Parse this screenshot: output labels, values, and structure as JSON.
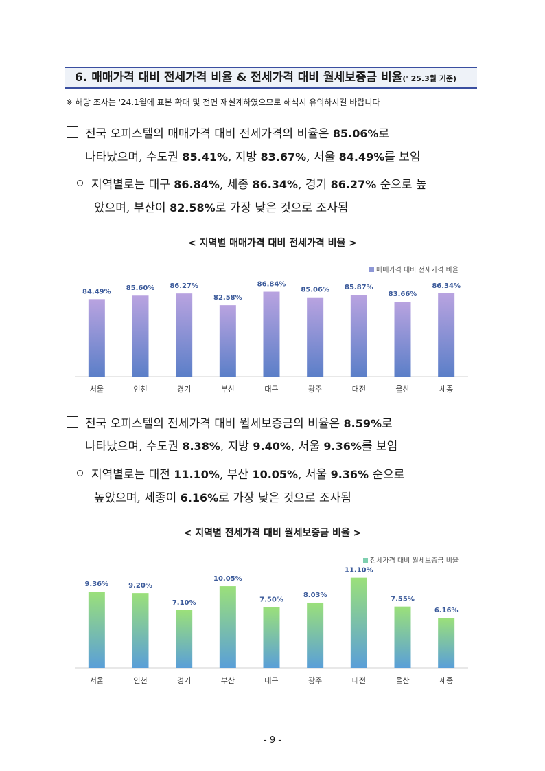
{
  "section": {
    "title": "6. 매매가격 대비 전세가격 비율 & 전세가격 대비 월세보증금 비율",
    "title_suffix": "(' 25.3월 기준)",
    "note": "※ 해당 조사는 '24.1월에 표본 확대 및 전면 재설계하였으므로 해석시 유의하시길 바랍니다"
  },
  "block1": {
    "line1_pre": "전국 오피스텔의 매매가격 대비 전세가격의 비율은 ",
    "line1_val": "85.06%",
    "line1_post": "로",
    "line2_a": "나타났으며, 수도권 ",
    "line2_v1": "85.41%",
    "line2_b": ", 지방 ",
    "line2_v2": "83.67%",
    "line2_c": ", 서울 ",
    "line2_v3": "84.49%",
    "line2_d": "를 보임",
    "sub_line1_a": "지역별로는 대구 ",
    "sub_line1_v1": "86.84%",
    "sub_line1_b": ", 세종 ",
    "sub_line1_v2": "86.34%",
    "sub_line1_c": ", 경기 ",
    "sub_line1_v3": "86.27%",
    "sub_line1_d": " 순으로 높",
    "sub_line2_a": "았으며, 부산이 ",
    "sub_line2_v1": "82.58%",
    "sub_line2_b": "로 가장 낮은 것으로 조사됨"
  },
  "block2": {
    "line1_pre": "전국 오피스텔의 전세가격 대비 월세보증금의 비율은 ",
    "line1_val": "8.59%",
    "line1_post": "로",
    "line2_a": "나타났으며, 수도권 ",
    "line2_v1": "8.38%",
    "line2_b": ", 지방 ",
    "line2_v2": "9.40%",
    "line2_c": ", 서울 ",
    "line2_v3": "9.36%",
    "line2_d": "를 보임",
    "sub_line1_a": "지역별로는 대전 ",
    "sub_line1_v1": "11.10%",
    "sub_line1_b": ", 부산 ",
    "sub_line1_v2": "10.05%",
    "sub_line1_c": ", 서울 ",
    "sub_line1_v3": "9.36%",
    "sub_line1_d": " 순으로",
    "sub_line2_a": "높았으며, 세종이 ",
    "sub_line2_v1": "6.16%",
    "sub_line2_b": "로 가장 낮은 것으로 조사됨"
  },
  "chart1_caption": "< 지역별 매매가격 대비 전세가격 비율 >",
  "chart2_caption": "< 지역별 전세가격 대비 월세보증금 비율 >",
  "page_number": "- 9 -",
  "chart_data": [
    {
      "type": "bar",
      "categories": [
        "서울",
        "인천",
        "경기",
        "부산",
        "대구",
        "광주",
        "대전",
        "울산",
        "세종"
      ],
      "series": [
        {
          "name": "매매가격 대비 전세가격 비율",
          "values": [
            84.49,
            85.6,
            86.27,
            82.58,
            86.84,
            85.06,
            85.87,
            83.66,
            86.34
          ]
        }
      ],
      "value_labels": [
        "84.49%",
        "85.60%",
        "86.27%",
        "82.58%",
        "86.84%",
        "85.06%",
        "85.87%",
        "83.66%",
        "86.34%"
      ],
      "ylim": [
        60,
        90
      ],
      "legend_position": "top-right",
      "colors": {
        "top": "#b9a3e0",
        "bottom": "#5b7fc8",
        "label": "#3b5a9a"
      }
    },
    {
      "type": "bar",
      "categories": [
        "서울",
        "인천",
        "경기",
        "부산",
        "대구",
        "광주",
        "대전",
        "울산",
        "세종"
      ],
      "series": [
        {
          "name": "전세가격 대비 월세보증금 비율",
          "values": [
            9.36,
            9.2,
            7.1,
            10.05,
            7.5,
            8.03,
            11.1,
            7.55,
            6.16
          ]
        }
      ],
      "value_labels": [
        "9.36%",
        "9.20%",
        "7.10%",
        "10.05%",
        "7.50%",
        "8.03%",
        "11.10%",
        "7.55%",
        "6.16%"
      ],
      "ylim": [
        0,
        12
      ],
      "legend_position": "top-right",
      "colors": {
        "top": "#9be07a",
        "bottom": "#5a9fd8",
        "label": "#3b5a9a"
      }
    }
  ]
}
